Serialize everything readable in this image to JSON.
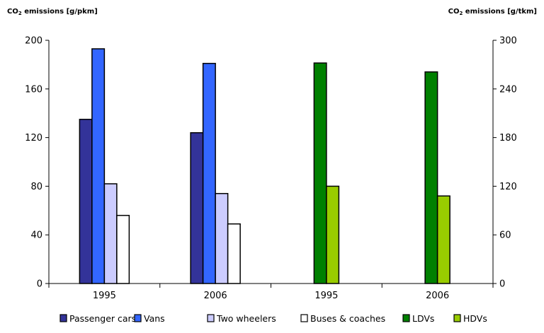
{
  "chart_data": {
    "type": "bar",
    "left_axis": {
      "title_pre": "CO",
      "title_sub": "2",
      "title_post": " emissions [g/pkm]",
      "min": 0,
      "max": 200,
      "ticks": [
        "0",
        "40",
        "80",
        "120",
        "160",
        "200"
      ]
    },
    "right_axis": {
      "title_pre": "CO",
      "title_sub": "2",
      "title_post": " emissions [g/tkm]",
      "min": 0,
      "max": 300,
      "ticks": [
        "0",
        "60",
        "120",
        "180",
        "240",
        "300"
      ]
    },
    "categories": [
      "1995",
      "2006",
      "1995",
      "2006"
    ],
    "series": [
      {
        "name": "Passenger cars",
        "color": "#333399",
        "axis": "left",
        "values": [
          135,
          124,
          null,
          null
        ]
      },
      {
        "name": "Vans",
        "color": "#3366ff",
        "axis": "left",
        "values": [
          193,
          181,
          null,
          null
        ]
      },
      {
        "name": "Two wheelers",
        "color": "#ccccff",
        "axis": "left",
        "values": [
          82,
          74,
          null,
          null
        ]
      },
      {
        "name": "Buses & coaches",
        "color": "#ffffff",
        "axis": "left",
        "values": [
          56,
          49,
          null,
          null
        ]
      },
      {
        "name": "LDVs",
        "color": "#008000",
        "axis": "right",
        "values": [
          null,
          null,
          272,
          261
        ]
      },
      {
        "name": "HDVs",
        "color": "#99cc00",
        "axis": "right",
        "values": [
          null,
          null,
          120,
          108
        ]
      }
    ],
    "legend_position": "bottom",
    "grid": false
  }
}
